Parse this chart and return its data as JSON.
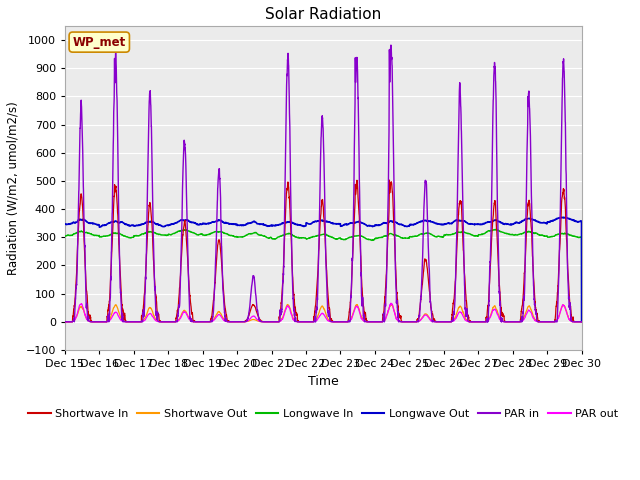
{
  "title": "Solar Radiation",
  "xlabel": "Time",
  "ylabel": "Radiation (W/m2, umol/m2/s)",
  "ylim": [
    -100,
    1050
  ],
  "yticks": [
    -100,
    0,
    100,
    200,
    300,
    400,
    500,
    600,
    700,
    800,
    900,
    1000
  ],
  "date_labels": [
    "Dec 15",
    "Dec 16",
    "Dec 17",
    "Dec 18",
    "Dec 19",
    "Dec 20",
    "Dec 21",
    "Dec 22",
    "Dec 23",
    "Dec 24",
    "Dec 25",
    "Dec 26",
    "Dec 27",
    "Dec 28",
    "Dec 29",
    "Dec 30"
  ],
  "station_label": "WP_met",
  "colors": {
    "shortwave_in": "#cc0000",
    "shortwave_out": "#ff9900",
    "longwave_in": "#00bb00",
    "longwave_out": "#0000cc",
    "par_in": "#8800cc",
    "par_out": "#ff00ff"
  },
  "legend_labels": [
    "Shortwave In",
    "Shortwave Out",
    "Longwave In",
    "Longwave Out",
    "PAR in",
    "PAR out"
  ],
  "plot_bg_color": "#ebebeb",
  "grid_color": "#ffffff",
  "par_in_peaks": [
    760,
    940,
    810,
    640,
    520,
    160,
    940,
    730,
    940,
    970,
    500,
    810,
    920,
    800,
    930
  ],
  "sw_in_peaks": [
    450,
    480,
    410,
    350,
    290,
    60,
    490,
    430,
    490,
    490,
    220,
    430,
    420,
    430,
    480
  ],
  "sw_out_peaks": [
    55,
    60,
    50,
    40,
    35,
    8,
    60,
    55,
    60,
    60,
    28,
    55,
    55,
    55,
    60
  ],
  "par_out_peaks": [
    65,
    35,
    30,
    35,
    25,
    20,
    55,
    30,
    55,
    65,
    25,
    35,
    45,
    40,
    60
  ],
  "lw_in_base": [
    305,
    300,
    305,
    310,
    305,
    300,
    295,
    295,
    290,
    295,
    300,
    305,
    310,
    305,
    300
  ],
  "lw_out_base": [
    345,
    340,
    340,
    345,
    345,
    340,
    340,
    345,
    340,
    340,
    345,
    345,
    345,
    350,
    355
  ]
}
